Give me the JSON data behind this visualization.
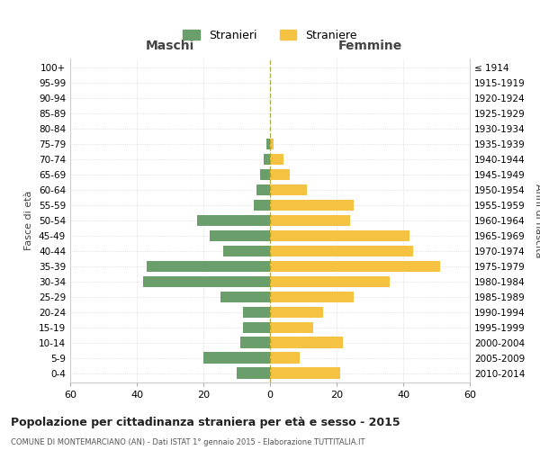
{
  "age_groups": [
    "100+",
    "95-99",
    "90-94",
    "85-89",
    "80-84",
    "75-79",
    "70-74",
    "65-69",
    "60-64",
    "55-59",
    "50-54",
    "45-49",
    "40-44",
    "35-39",
    "30-34",
    "25-29",
    "20-24",
    "15-19",
    "10-14",
    "5-9",
    "0-4"
  ],
  "birth_years": [
    "≤ 1914",
    "1915-1919",
    "1920-1924",
    "1925-1929",
    "1930-1934",
    "1935-1939",
    "1940-1944",
    "1945-1949",
    "1950-1954",
    "1955-1959",
    "1960-1964",
    "1965-1969",
    "1970-1974",
    "1975-1979",
    "1980-1984",
    "1985-1989",
    "1990-1994",
    "1995-1999",
    "2000-2004",
    "2005-2009",
    "2010-2014"
  ],
  "maschi": [
    0,
    0,
    0,
    0,
    0,
    1,
    2,
    3,
    4,
    5,
    22,
    18,
    14,
    37,
    38,
    15,
    8,
    8,
    9,
    20,
    10
  ],
  "femmine": [
    0,
    0,
    0,
    0,
    0,
    1,
    4,
    6,
    11,
    25,
    24,
    42,
    43,
    51,
    36,
    25,
    16,
    13,
    22,
    9,
    21
  ],
  "color_maschi": "#6a9e6a",
  "color_femmine": "#f5c242",
  "background_color": "#ffffff",
  "title": "Popolazione per cittadinanza straniera per età e sesso - 2015",
  "subtitle": "COMUNE DI MONTEMARCIANO (AN) - Dati ISTAT 1° gennaio 2015 - Elaborazione TUTTITALIA.IT",
  "xlabel_left": "Maschi",
  "xlabel_right": "Femmine",
  "ylabel_left": "Fasce di età",
  "ylabel_right": "Anni di nascita",
  "legend_maschi": "Stranieri",
  "legend_femmine": "Straniere",
  "xlim": 60,
  "grid_color": "#cccccc"
}
